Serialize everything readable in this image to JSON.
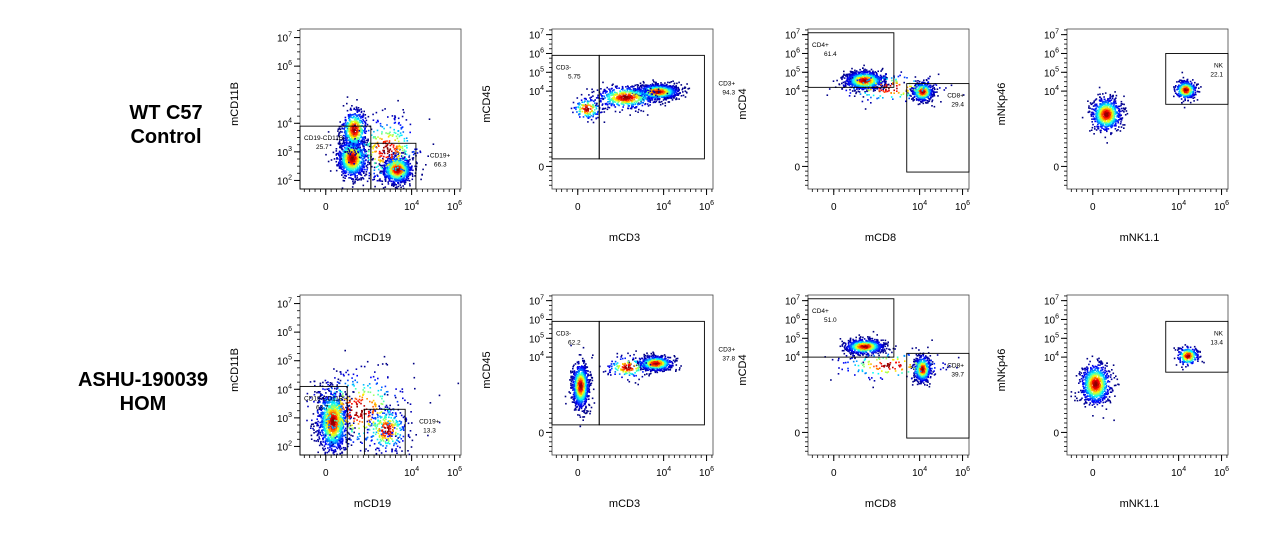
{
  "rows": [
    {
      "label_lines": [
        "WT C57",
        "Control"
      ]
    },
    {
      "label_lines": [
        "ASHU-190039",
        "HOM"
      ]
    }
  ],
  "chart_data": [
    {
      "type": "scatter",
      "row": 0,
      "col": 0,
      "xlabel": "mCD19",
      "ylabel": "mCD11B",
      "x_ticks": [
        {
          "v": 0,
          "t": "0"
        },
        {
          "v": 4,
          "t": "10^4"
        },
        {
          "v": 6,
          "t": "10^6"
        }
      ],
      "y_ticks": [
        {
          "v": 2,
          "t": "10^2"
        },
        {
          "v": 3,
          "t": "10^3"
        },
        {
          "v": 4,
          "t": "10^4"
        },
        {
          "v": 6,
          "t": "10^6"
        },
        {
          "v": 7,
          "t": "10^7"
        }
      ],
      "xlim": [
        -1.2,
        6.3
      ],
      "ylim": [
        1.7,
        7.3
      ],
      "gates": [
        {
          "name": "CD19-CD11B-",
          "value": "25.7",
          "x": [
            -1.2,
            2.1
          ],
          "y": [
            1.7,
            3.9
          ]
        },
        {
          "name": "CD19+",
          "value": "66.3",
          "x": [
            2.1,
            4.2
          ],
          "y": [
            1.7,
            3.3
          ]
        }
      ],
      "populations": [
        {
          "cx": 1.2,
          "cy": 2.8,
          "sx": 0.35,
          "sy": 0.35,
          "n": 900
        },
        {
          "cx": 1.3,
          "cy": 3.8,
          "sx": 0.3,
          "sy": 0.35,
          "n": 500
        },
        {
          "cx": 3.3,
          "cy": 2.4,
          "sx": 0.35,
          "sy": 0.25,
          "n": 900
        },
        {
          "cx": 2.8,
          "cy": 3.1,
          "sx": 0.8,
          "sy": 0.6,
          "n": 300
        }
      ]
    },
    {
      "type": "scatter",
      "row": 0,
      "col": 1,
      "xlabel": "mCD3",
      "ylabel": "mCD45",
      "x_ticks": [
        {
          "v": 0,
          "t": "0"
        },
        {
          "v": 4,
          "t": "10^4"
        },
        {
          "v": 6,
          "t": "10^6"
        }
      ],
      "y_ticks": [
        {
          "v": 0,
          "t": "0"
        },
        {
          "v": 4,
          "t": "10^4"
        },
        {
          "v": 5,
          "t": "10^5"
        },
        {
          "v": 6,
          "t": "10^6"
        },
        {
          "v": 7,
          "t": "10^7"
        }
      ],
      "xlim": [
        -1.2,
        6.3
      ],
      "ylim": [
        -1.2,
        7.3
      ],
      "gates": [
        {
          "name": "CD3-",
          "value": "5.75",
          "x": [
            -1.2,
            1.0
          ],
          "y": [
            0.4,
            5.9
          ]
        },
        {
          "name": "CD3+",
          "value": "94.3",
          "x": [
            1.0,
            5.9
          ],
          "y": [
            0.4,
            5.9
          ]
        }
      ],
      "populations": [
        {
          "cx": 3.7,
          "cy": 4.0,
          "sx": 0.5,
          "sy": 0.2,
          "n": 1000
        },
        {
          "cx": 2.2,
          "cy": 3.7,
          "sx": 0.7,
          "sy": 0.3,
          "n": 500
        },
        {
          "cx": 0.4,
          "cy": 3.1,
          "sx": 0.35,
          "sy": 0.3,
          "n": 150
        }
      ]
    },
    {
      "type": "scatter",
      "row": 0,
      "col": 2,
      "xlabel": "mCD8",
      "ylabel": "mCD4",
      "x_ticks": [
        {
          "v": 0,
          "t": "0"
        },
        {
          "v": 4,
          "t": "10^4"
        },
        {
          "v": 6,
          "t": "10^6"
        }
      ],
      "y_ticks": [
        {
          "v": 0,
          "t": "0"
        },
        {
          "v": 4,
          "t": "10^4"
        },
        {
          "v": 5,
          "t": "10^5"
        },
        {
          "v": 6,
          "t": "10^6"
        },
        {
          "v": 7,
          "t": "10^7"
        }
      ],
      "xlim": [
        -1.2,
        6.3
      ],
      "ylim": [
        -1.2,
        7.3
      ],
      "gates": [
        {
          "name": "CD4+",
          "value": "61.4",
          "x": [
            -1.2,
            2.8
          ],
          "y": [
            4.2,
            7.1
          ]
        },
        {
          "name": "CD8+",
          "value": "29.4",
          "x": [
            3.4,
            6.3
          ],
          "y": [
            -0.3,
            4.4
          ]
        }
      ],
      "populations": [
        {
          "cx": 1.4,
          "cy": 4.6,
          "sx": 0.45,
          "sy": 0.25,
          "n": 900
        },
        {
          "cx": 4.1,
          "cy": 4.0,
          "sx": 0.25,
          "sy": 0.25,
          "n": 500
        },
        {
          "cx": 2.6,
          "cy": 4.2,
          "sx": 1.2,
          "sy": 0.4,
          "n": 150
        }
      ]
    },
    {
      "type": "scatter",
      "row": 0,
      "col": 3,
      "xlabel": "mNK1.1",
      "ylabel": "mNKp46",
      "x_ticks": [
        {
          "v": 0,
          "t": "0"
        },
        {
          "v": 4,
          "t": "10^4"
        },
        {
          "v": 6,
          "t": "10^6"
        }
      ],
      "y_ticks": [
        {
          "v": 0,
          "t": "0"
        },
        {
          "v": 4,
          "t": "10^4"
        },
        {
          "v": 5,
          "t": "10^5"
        },
        {
          "v": 6,
          "t": "10^6"
        },
        {
          "v": 7,
          "t": "10^7"
        }
      ],
      "xlim": [
        -1.2,
        6.3
      ],
      "ylim": [
        -1.2,
        7.3
      ],
      "gates": [
        {
          "name": "NK",
          "value": "22.1",
          "x": [
            3.4,
            6.6
          ],
          "y": [
            3.3,
            6.0
          ]
        }
      ],
      "populations": [
        {
          "cx": 0.6,
          "cy": 2.8,
          "sx": 0.35,
          "sy": 0.45,
          "n": 700
        },
        {
          "cx": 4.3,
          "cy": 4.1,
          "sx": 0.25,
          "sy": 0.25,
          "n": 350
        }
      ]
    },
    {
      "type": "scatter",
      "row": 1,
      "col": 0,
      "xlabel": "mCD19",
      "ylabel": "mCD11B",
      "x_ticks": [
        {
          "v": 0,
          "t": "0"
        },
        {
          "v": 4,
          "t": "10^4"
        },
        {
          "v": 6,
          "t": "10^6"
        }
      ],
      "y_ticks": [
        {
          "v": 2,
          "t": "10^2"
        },
        {
          "v": 3,
          "t": "10^3"
        },
        {
          "v": 4,
          "t": "10^4"
        },
        {
          "v": 5,
          "t": "10^5"
        },
        {
          "v": 6,
          "t": "10^6"
        },
        {
          "v": 7,
          "t": "10^7"
        }
      ],
      "xlim": [
        -1.2,
        6.3
      ],
      "ylim": [
        1.7,
        7.3
      ],
      "gates": [
        {
          "name": "CD19-CD11B-",
          "value": "63.7",
          "x": [
            -1.2,
            1.0
          ],
          "y": [
            1.7,
            4.1
          ]
        },
        {
          "name": "CD19+",
          "value": "13.3",
          "x": [
            1.8,
            3.7
          ],
          "y": [
            1.7,
            3.3
          ]
        }
      ],
      "populations": [
        {
          "cx": 0.3,
          "cy": 2.9,
          "sx": 0.35,
          "sy": 0.55,
          "n": 1200
        },
        {
          "cx": 2.8,
          "cy": 2.6,
          "sx": 0.5,
          "sy": 0.4,
          "n": 300
        },
        {
          "cx": 1.5,
          "cy": 3.3,
          "sx": 1.2,
          "sy": 0.7,
          "n": 400
        }
      ]
    },
    {
      "type": "scatter",
      "row": 1,
      "col": 1,
      "xlabel": "mCD3",
      "ylabel": "mCD45",
      "x_ticks": [
        {
          "v": 0,
          "t": "0"
        },
        {
          "v": 4,
          "t": "10^4"
        },
        {
          "v": 6,
          "t": "10^6"
        }
      ],
      "y_ticks": [
        {
          "v": 0,
          "t": "0"
        },
        {
          "v": 4,
          "t": "10^4"
        },
        {
          "v": 5,
          "t": "10^5"
        },
        {
          "v": 6,
          "t": "10^6"
        },
        {
          "v": 7,
          "t": "10^7"
        }
      ],
      "xlim": [
        -1.2,
        6.3
      ],
      "ylim": [
        -1.2,
        7.3
      ],
      "gates": [
        {
          "name": "CD3-",
          "value": "62.2",
          "x": [
            -1.2,
            1.0
          ],
          "y": [
            0.4,
            5.9
          ]
        },
        {
          "name": "CD3+",
          "value": "37.8",
          "x": [
            1.0,
            5.9
          ],
          "y": [
            0.4,
            5.9
          ]
        }
      ],
      "populations": [
        {
          "cx": 0.1,
          "cy": 2.5,
          "sx": 0.2,
          "sy": 0.6,
          "n": 900
        },
        {
          "cx": 3.6,
          "cy": 3.7,
          "sx": 0.4,
          "sy": 0.2,
          "n": 600
        },
        {
          "cx": 2.3,
          "cy": 3.5,
          "sx": 0.5,
          "sy": 0.3,
          "n": 150
        }
      ]
    },
    {
      "type": "scatter",
      "row": 1,
      "col": 2,
      "xlabel": "mCD8",
      "ylabel": "mCD4",
      "x_ticks": [
        {
          "v": 0,
          "t": "0"
        },
        {
          "v": 4,
          "t": "10^4"
        },
        {
          "v": 6,
          "t": "10^6"
        }
      ],
      "y_ticks": [
        {
          "v": 0,
          "t": "0"
        },
        {
          "v": 4,
          "t": "10^4"
        },
        {
          "v": 5,
          "t": "10^5"
        },
        {
          "v": 6,
          "t": "10^6"
        },
        {
          "v": 7,
          "t": "10^7"
        }
      ],
      "xlim": [
        -1.2,
        6.3
      ],
      "ylim": [
        -1.2,
        7.3
      ],
      "gates": [
        {
          "name": "CD4+",
          "value": "51.0",
          "x": [
            -1.2,
            2.8
          ],
          "y": [
            4.0,
            7.1
          ]
        },
        {
          "name": "CD8+",
          "value": "39.7",
          "x": [
            3.4,
            6.3
          ],
          "y": [
            -0.3,
            4.2
          ]
        }
      ],
      "populations": [
        {
          "cx": 1.4,
          "cy": 4.6,
          "sx": 0.45,
          "sy": 0.2,
          "n": 700
        },
        {
          "cx": 4.1,
          "cy": 3.4,
          "sx": 0.2,
          "sy": 0.35,
          "n": 500
        },
        {
          "cx": 2.6,
          "cy": 3.6,
          "sx": 1.3,
          "sy": 0.4,
          "n": 150
        }
      ]
    },
    {
      "type": "scatter",
      "row": 1,
      "col": 3,
      "xlabel": "mNK1.1",
      "ylabel": "mNKp46",
      "x_ticks": [
        {
          "v": 0,
          "t": "0"
        },
        {
          "v": 4,
          "t": "10^4"
        },
        {
          "v": 6,
          "t": "10^6"
        }
      ],
      "y_ticks": [
        {
          "v": 0,
          "t": "0"
        },
        {
          "v": 4,
          "t": "10^4"
        },
        {
          "v": 5,
          "t": "10^5"
        },
        {
          "v": 6,
          "t": "10^6"
        },
        {
          "v": 7,
          "t": "10^7"
        }
      ],
      "xlim": [
        -1.2,
        6.3
      ],
      "ylim": [
        -1.2,
        7.3
      ],
      "gates": [
        {
          "name": "NK",
          "value": "13.4",
          "x": [
            3.4,
            6.6
          ],
          "y": [
            3.2,
            5.9
          ]
        }
      ],
      "populations": [
        {
          "cx": 0.1,
          "cy": 2.6,
          "sx": 0.35,
          "sy": 0.55,
          "n": 800
        },
        {
          "cx": 4.4,
          "cy": 4.1,
          "sx": 0.25,
          "sy": 0.25,
          "n": 250
        }
      ]
    }
  ]
}
